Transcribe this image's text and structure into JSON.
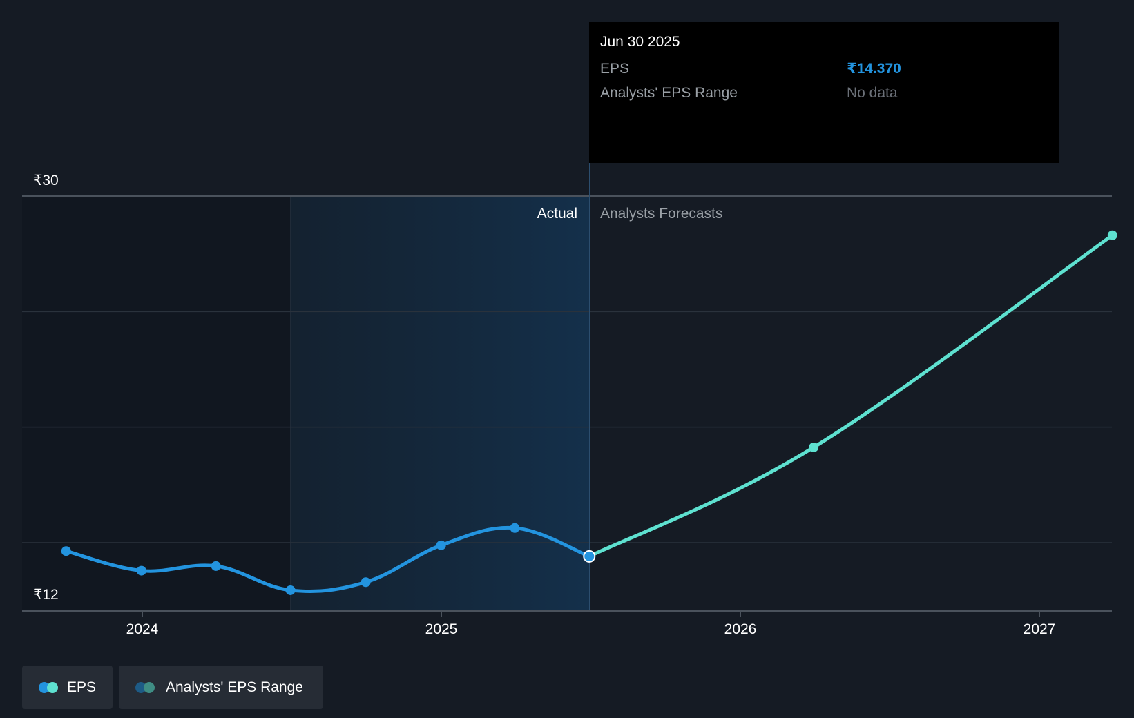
{
  "chart_data": {
    "type": "line",
    "y_min_label": "₹12",
    "y_max_label": "₹30",
    "ylim": [
      12,
      30
    ],
    "x_ticks": [
      "2024",
      "2025",
      "2026",
      "2027"
    ],
    "divider_date": "2025-06-30",
    "actual_label": "Actual",
    "forecast_label": "Analysts Forecasts",
    "series": [
      {
        "name": "EPS",
        "color": "#2394df",
        "points": [
          {
            "x": "2023-09-30",
            "y": 14.6
          },
          {
            "x": "2023-12-31",
            "y": 13.75
          },
          {
            "x": "2024-03-31",
            "y": 13.95
          },
          {
            "x": "2024-06-30",
            "y": 12.9
          },
          {
            "x": "2024-09-30",
            "y": 13.25
          },
          {
            "x": "2024-12-31",
            "y": 14.85
          },
          {
            "x": "2025-03-31",
            "y": 15.6
          },
          {
            "x": "2025-06-30",
            "y": 14.37
          }
        ]
      },
      {
        "name": "EPS Forecast",
        "color": "#5ee1d0",
        "points": [
          {
            "x": "2025-06-30",
            "y": 14.37
          },
          {
            "x": "2026-03-31",
            "y": 19.1
          },
          {
            "x": "2027-03-31",
            "y": 28.3
          }
        ]
      }
    ],
    "tooltip": {
      "date": "Jun 30 2025",
      "rows": [
        {
          "label": "EPS",
          "value": "₹14.370"
        },
        {
          "label": "Analysts' EPS Range",
          "value": "No data"
        }
      ]
    }
  },
  "legend": {
    "eps_label": "EPS",
    "range_label": "Analysts' EPS Range",
    "eps_colors": [
      "#2394df",
      "#5ee1d0"
    ],
    "range_colors": [
      "#1d5b86",
      "#3f8d84"
    ]
  }
}
